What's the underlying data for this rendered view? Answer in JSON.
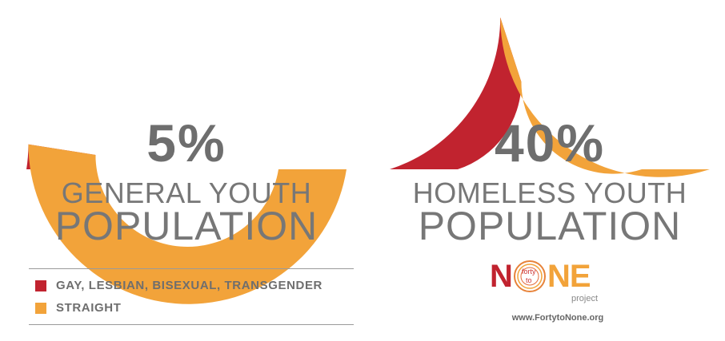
{
  "chart_data": [
    {
      "type": "pie",
      "style": "half-donut gauge",
      "percent_label": "5%",
      "label_line1": "GENERAL YOUTH",
      "label_line2": "POPULATION",
      "slices": [
        {
          "name": "GAY, LESBIAN, BISEXUAL, TRANSGENDER",
          "value": 5,
          "color": "#c1232f"
        },
        {
          "name": "STRAIGHT",
          "value": 95,
          "color": "#f2a33a"
        }
      ]
    },
    {
      "type": "pie",
      "style": "half-donut gauge",
      "percent_label": "40%",
      "label_line1": "HOMELESS YOUTH",
      "label_line2": "POPULATION",
      "slices": [
        {
          "name": "GAY, LESBIAN, BISEXUAL, TRANSGENDER",
          "value": 40,
          "color": "#c1232f"
        },
        {
          "name": "STRAIGHT",
          "value": 60,
          "color": "#f2a33a"
        }
      ]
    }
  ],
  "legend": [
    {
      "label": "GAY, LESBIAN, BISEXUAL, TRANSGENDER",
      "color": "#c1232f"
    },
    {
      "label": "STRAIGHT",
      "color": "#f2a33a"
    }
  ],
  "logo": {
    "n": "N",
    "o_small_top": "forty",
    "o_small_bottom": "to",
    "ne": "NE",
    "project": "project",
    "url": "www.FortytoNone.org"
  }
}
